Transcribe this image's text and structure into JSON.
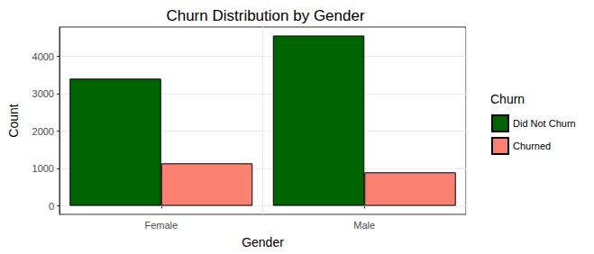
{
  "chart_data": {
    "type": "bar",
    "title": "Churn Distribution by Gender",
    "x_label": "Gender",
    "y_label": "Count",
    "legend_title": "Churn",
    "categories": [
      "Female",
      "Male"
    ],
    "series": [
      {
        "name": "Did Not Churn",
        "color": "#006400",
        "values": [
          3404,
          4559
        ]
      },
      {
        "name": "Churned",
        "color": "#FA8072",
        "values": [
          1139,
          898
        ]
      }
    ],
    "ylim": [
      -228,
      4787
    ],
    "yticks": [
      0,
      1000,
      2000,
      3000,
      4000
    ],
    "grid": true,
    "legend": "right"
  }
}
